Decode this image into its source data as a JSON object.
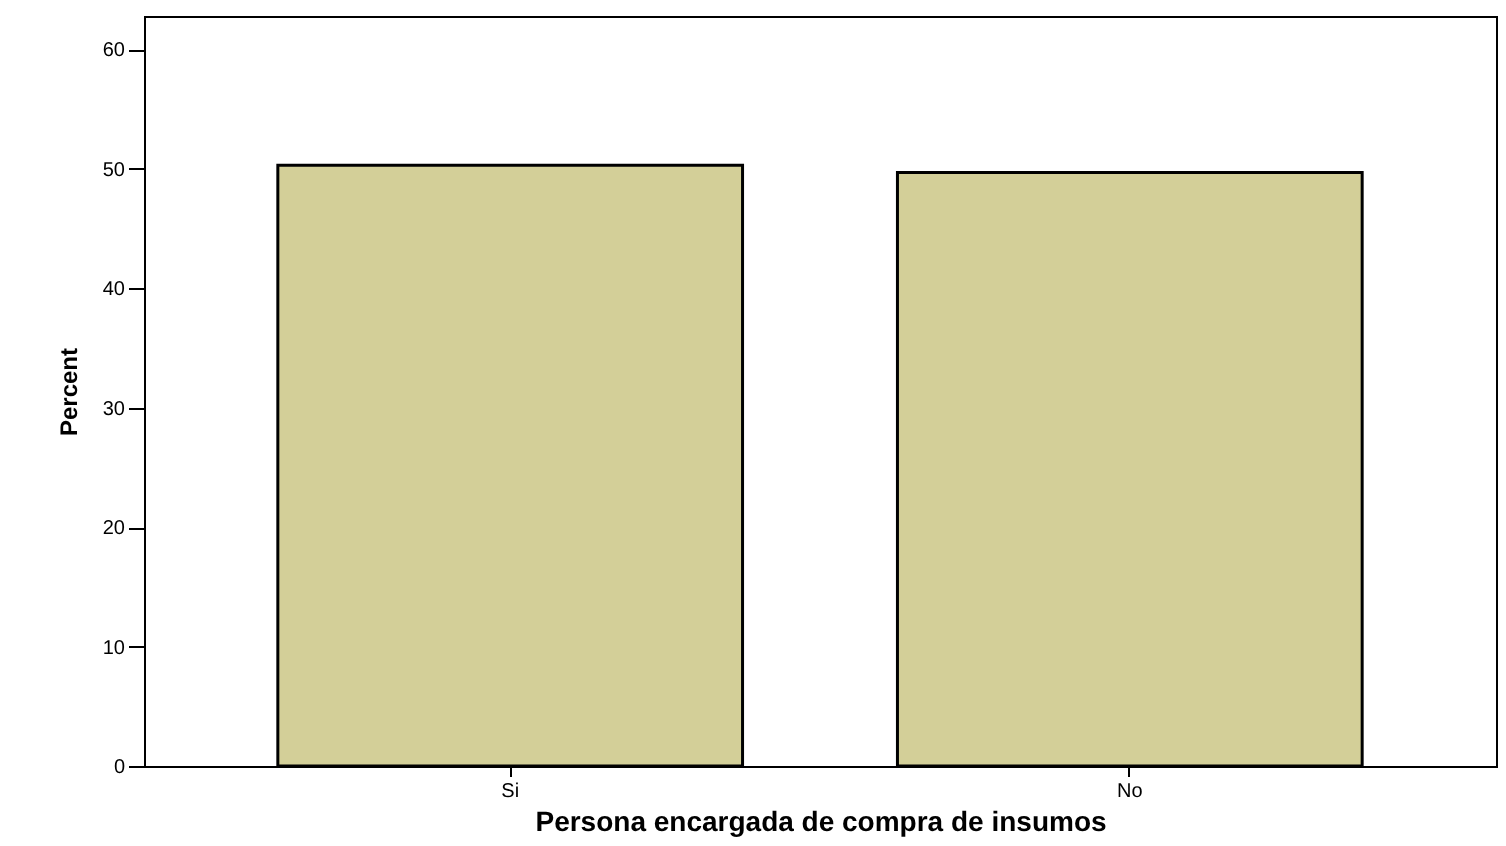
{
  "chart_data": {
    "type": "bar",
    "xlabel": "Persona encargada de compra de insumos",
    "ylabel": "Percent",
    "categories": [
      "Si",
      "No"
    ],
    "values": [
      50.3,
      49.7
    ],
    "color": "#d3cf98",
    "ylim": [
      0,
      62.8
    ],
    "yticks": [
      0,
      10,
      20,
      30,
      40,
      50,
      60
    ],
    "grid": false
  }
}
